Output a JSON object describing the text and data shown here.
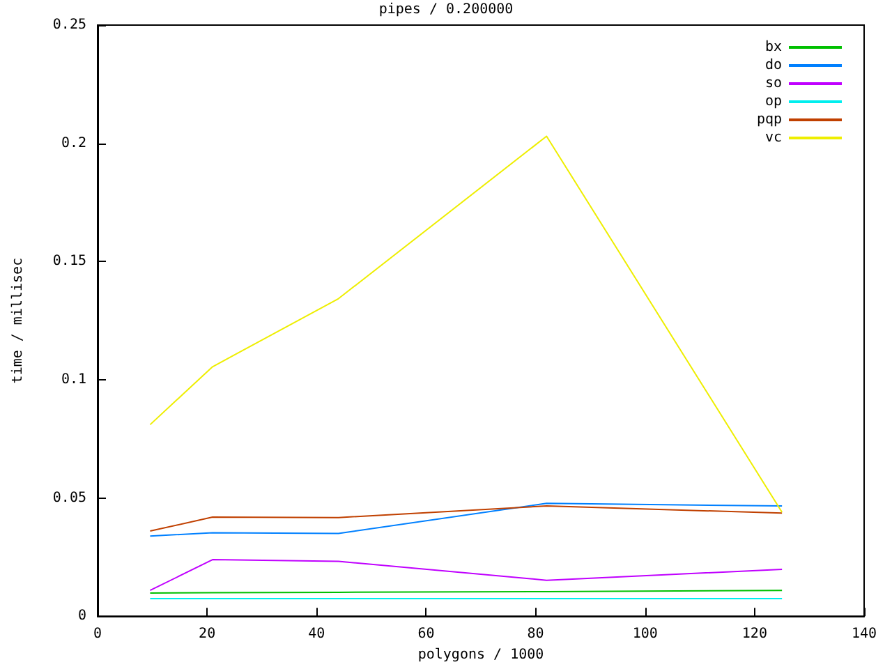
{
  "chart_data": {
    "type": "line",
    "title": "pipes / 0.200000",
    "xlabel": "polygons / 1000",
    "ylabel": "time / millisec",
    "x": [
      9.6,
      21,
      44,
      82,
      125
    ],
    "series": [
      {
        "name": "bx",
        "color": "#00c000",
        "values": [
          0.0098,
          0.0099,
          0.0101,
          0.0104,
          0.0109
        ]
      },
      {
        "name": "do",
        "color": "#0080ff",
        "values": [
          0.0339,
          0.0353,
          0.035,
          0.0477,
          0.0466
        ]
      },
      {
        "name": "so",
        "color": "#c000ff",
        "values": [
          0.0109,
          0.0239,
          0.0232,
          0.0152,
          0.0198
        ]
      },
      {
        "name": "op",
        "color": "#00eeee",
        "values": [
          0.0074,
          0.0074,
          0.0074,
          0.0074,
          0.0074
        ]
      },
      {
        "name": "pqp",
        "color": "#c04000",
        "values": [
          0.036,
          0.0419,
          0.0417,
          0.0466,
          0.0436
        ]
      },
      {
        "name": "vc",
        "color": "#eeee00",
        "values": [
          0.081,
          0.1055,
          0.1343,
          0.203,
          0.044
        ]
      }
    ],
    "xlim": [
      0,
      140
    ],
    "xticks": [
      0,
      20,
      40,
      60,
      80,
      100,
      120,
      140
    ],
    "ylim": [
      0,
      0.25
    ],
    "yticks": [
      0,
      0.05,
      0.1,
      0.15,
      0.2,
      0.25
    ],
    "grid": false,
    "legend": "top right",
    "marker": "none",
    "line_style": "solid"
  }
}
